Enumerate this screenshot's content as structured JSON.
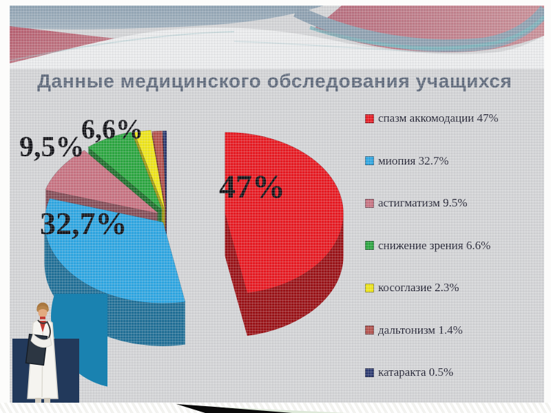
{
  "slide": {
    "title": "Данные медицинского обследования учащихся",
    "title_color": "#5c6779",
    "background_color": "#d4d5d7"
  },
  "chart_data": {
    "type": "pie",
    "style": "3d-exploded",
    "title": "Данные медицинского обследования учащихся",
    "legend_position": "right",
    "total": 100,
    "slices": [
      {
        "label": "спазм аккомодации",
        "value": 47,
        "legend_label": "спазм аккомодации 47%",
        "pie_label": "47%",
        "color": "#e8151d"
      },
      {
        "label": "миопия",
        "value": 32.7,
        "legend_label": "миопия 32.7%",
        "pie_label": "32,7%",
        "color": "#2aa5e2"
      },
      {
        "label": "астигматизм",
        "value": 9.5,
        "legend_label": "астигматизм 9.5%",
        "pie_label": "9,5%",
        "color": "#c7707f"
      },
      {
        "label": "снижение зрения",
        "value": 6.6,
        "legend_label": "снижение зрения 6.6%",
        "pie_label": "6,6%",
        "color": "#27a53c"
      },
      {
        "label": "косоглазие",
        "value": 2.3,
        "legend_label": "косоглазие 2.3%",
        "pie_label": "",
        "color": "#efe616"
      },
      {
        "label": "дальтонизм",
        "value": 1.4,
        "legend_label": "дальтонизм 1.4%",
        "pie_label": "",
        "color": "#b34e49"
      },
      {
        "label": "катаракта",
        "value": 0.5,
        "legend_label": "катаракта 0.5%",
        "pie_label": "",
        "color": "#27356e"
      }
    ]
  }
}
